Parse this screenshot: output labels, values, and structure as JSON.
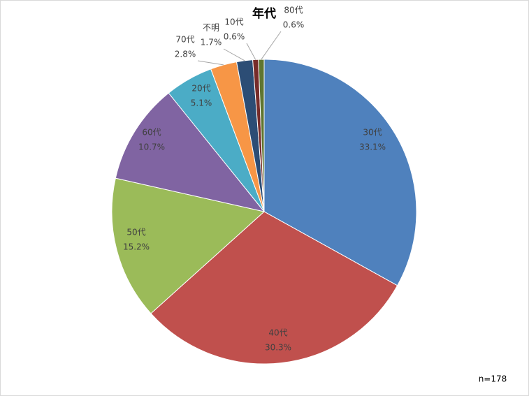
{
  "chart_data": {
    "type": "pie",
    "title": "年代",
    "note": "n=178",
    "categories": [
      "30代",
      "40代",
      "50代",
      "60代",
      "20代",
      "70代",
      "不明",
      "10代",
      "80代"
    ],
    "values": [
      33.1,
      30.3,
      15.2,
      10.7,
      5.1,
      2.8,
      1.7,
      0.6,
      0.6
    ],
    "value_labels": [
      "33.1%",
      "30.3%",
      "15.2%",
      "10.7%",
      "5.1%",
      "2.8%",
      "1.7%",
      "0.6%",
      "0.6%"
    ],
    "colors": [
      "#4f81bd",
      "#c0504d",
      "#9bbb59",
      "#8064a2",
      "#4bacc6",
      "#f79646",
      "#2c4d75",
      "#772c2a",
      "#5f7530"
    ]
  }
}
